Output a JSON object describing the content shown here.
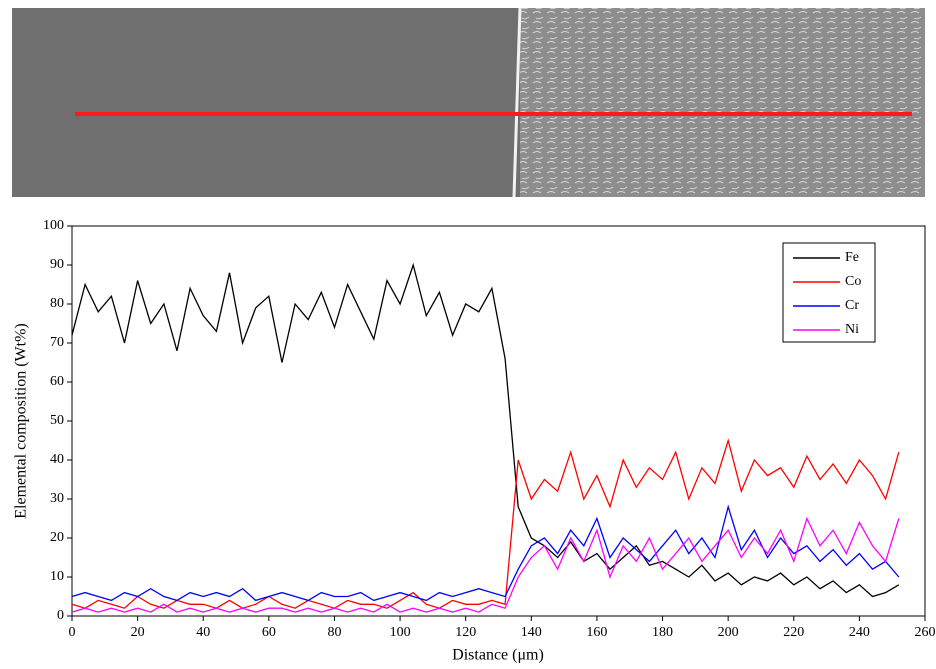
{
  "chart_data": {
    "type": "line",
    "xlabel": "Distance (μm)",
    "ylabel": "Elemental composition (Wt%)",
    "x": [
      0,
      4,
      8,
      12,
      16,
      20,
      24,
      28,
      32,
      36,
      40,
      44,
      48,
      52,
      56,
      60,
      64,
      68,
      72,
      76,
      80,
      84,
      88,
      92,
      96,
      100,
      104,
      108,
      112,
      116,
      120,
      124,
      128,
      132,
      136,
      140,
      144,
      148,
      152,
      156,
      160,
      164,
      168,
      172,
      176,
      180,
      184,
      188,
      192,
      196,
      200,
      204,
      208,
      212,
      216,
      220,
      224,
      228,
      232,
      236,
      240,
      244,
      248,
      252
    ],
    "series": [
      {
        "name": "Fe",
        "color": "#000000",
        "values": [
          72,
          85,
          78,
          82,
          70,
          86,
          75,
          80,
          68,
          84,
          77,
          73,
          88,
          70,
          79,
          82,
          65,
          80,
          76,
          83,
          74,
          85,
          78,
          71,
          86,
          80,
          90,
          77,
          83,
          72,
          80,
          78,
          84,
          66,
          28,
          20,
          18,
          15,
          19,
          14,
          16,
          12,
          15,
          18,
          13,
          14,
          12,
          10,
          13,
          9,
          11,
          8,
          10,
          9,
          11,
          8,
          10,
          7,
          9,
          6,
          8,
          5,
          6,
          8
        ]
      },
      {
        "name": "Co",
        "color": "#ff0000",
        "values": [
          3,
          2,
          4,
          3,
          2,
          5,
          3,
          2,
          4,
          3,
          3,
          2,
          4,
          2,
          3,
          5,
          3,
          2,
          4,
          3,
          2,
          4,
          3,
          3,
          2,
          4,
          6,
          3,
          2,
          4,
          3,
          3,
          4,
          3,
          40,
          30,
          35,
          32,
          42,
          30,
          36,
          28,
          40,
          33,
          38,
          35,
          42,
          30,
          38,
          34,
          45,
          32,
          40,
          36,
          38,
          33,
          41,
          35,
          39,
          34,
          40,
          36,
          30,
          42
        ]
      },
      {
        "name": "Cr",
        "color": "#0000ff",
        "values": [
          5,
          6,
          5,
          4,
          6,
          5,
          7,
          5,
          4,
          6,
          5,
          6,
          5,
          7,
          4,
          5,
          6,
          5,
          4,
          6,
          5,
          5,
          6,
          4,
          5,
          6,
          5,
          4,
          6,
          5,
          6,
          7,
          6,
          5,
          12,
          18,
          20,
          16,
          22,
          18,
          25,
          15,
          20,
          17,
          14,
          18,
          22,
          16,
          20,
          15,
          28,
          17,
          22,
          15,
          20,
          16,
          18,
          14,
          17,
          13,
          16,
          12,
          14,
          10
        ]
      },
      {
        "name": "Ni",
        "color": "#ff00ff",
        "values": [
          1,
          2,
          1,
          2,
          1,
          2,
          1,
          3,
          1,
          2,
          1,
          2,
          1,
          2,
          1,
          2,
          2,
          1,
          2,
          1,
          2,
          1,
          2,
          1,
          3,
          1,
          2,
          1,
          2,
          1,
          2,
          1,
          3,
          2,
          10,
          15,
          18,
          12,
          20,
          14,
          22,
          10,
          18,
          14,
          20,
          12,
          16,
          20,
          14,
          18,
          22,
          15,
          20,
          16,
          22,
          14,
          25,
          18,
          22,
          16,
          24,
          18,
          14,
          25
        ]
      }
    ],
    "xlim": [
      0,
      260
    ],
    "xticks": [
      0,
      20,
      40,
      60,
      80,
      100,
      120,
      140,
      160,
      180,
      200,
      220,
      240,
      260
    ],
    "ylim": [
      0,
      100
    ],
    "yticks": [
      0,
      10,
      20,
      30,
      40,
      50,
      60,
      70,
      80,
      90,
      100
    ],
    "legend": "upper right"
  }
}
